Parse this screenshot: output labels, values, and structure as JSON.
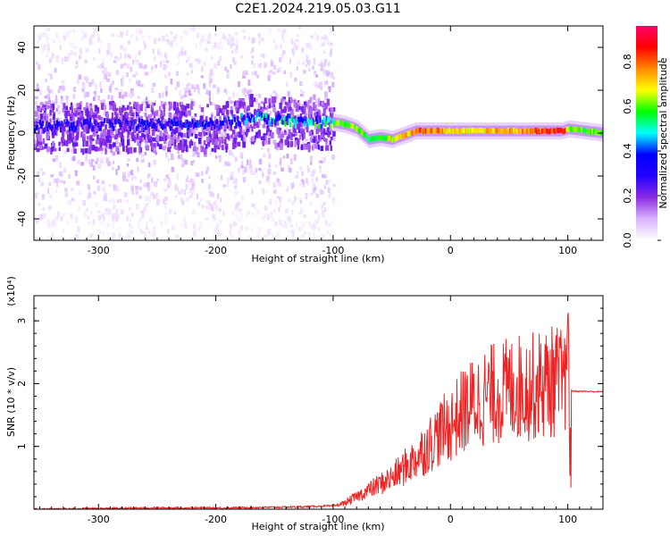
{
  "title": "C2E1.2024.219.05.03.G11",
  "colorbar": {
    "label": "Normalized spectral amplitude",
    "ticks": [
      "0.0",
      "0.2",
      "0.4",
      "0.6",
      "0.8"
    ],
    "tick_values": [
      0.0,
      0.2,
      0.4,
      0.6,
      0.8
    ],
    "range": [
      0.0,
      0.96
    ],
    "colormap": [
      "#ffffff",
      "#d9b3ff",
      "#8a2be2",
      "#2200ff",
      "#0000ff",
      "#00ffff",
      "#00ff00",
      "#ffff00",
      "#ff8800",
      "#ff0000",
      "#ff0066"
    ]
  },
  "chart_data": [
    {
      "type": "heatmap",
      "xlabel": "Height of straight line (km)",
      "ylabel": "Frequency (Hz)",
      "xlim": [
        -355,
        130
      ],
      "ylim": [
        -50,
        50
      ],
      "x_ticks": [
        "-300",
        "-200",
        "-100",
        "0",
        "100"
      ],
      "x_tick_values": [
        -300,
        -200,
        -100,
        0,
        100
      ],
      "y_ticks": [
        "-40",
        "-20",
        "0",
        "20",
        "40"
      ],
      "y_tick_values": [
        -40,
        -20,
        0,
        20,
        40
      ],
      "ridge": {
        "x": [
          -355,
          -300,
          -250,
          -200,
          -180,
          -170,
          -160,
          -150,
          -140,
          -130,
          -120,
          -110,
          -100,
          -90,
          -80,
          -70,
          -60,
          -50,
          -40,
          -30,
          -20,
          -10,
          0,
          20,
          40,
          60,
          80,
          95,
          100,
          130
        ],
        "frequency": [
          3,
          4,
          4,
          4,
          6,
          8,
          7,
          6,
          6,
          5,
          5,
          5,
          5,
          4,
          2,
          -3,
          -2,
          -3,
          -1,
          1,
          1,
          1,
          1,
          1,
          1,
          1,
          1,
          1,
          2,
          0
        ],
        "amplitude": [
          0.32,
          0.33,
          0.35,
          0.35,
          0.4,
          0.45,
          0.5,
          0.45,
          0.5,
          0.45,
          0.5,
          0.55,
          0.6,
          0.6,
          0.6,
          0.55,
          0.6,
          0.65,
          0.7,
          0.75,
          0.8,
          0.75,
          0.7,
          0.7,
          0.75,
          0.75,
          0.8,
          0.9,
          0.6,
          0.6
        ]
      }
    },
    {
      "type": "line",
      "xlabel": "Height of straight line (km)",
      "ylabel": "SNR (10 * v/v)",
      "scale_label": "(x10⁴)",
      "xlim": [
        -355,
        130
      ],
      "ylim": [
        0,
        3.4
      ],
      "x_ticks": [
        "-300",
        "-200",
        "-100",
        "0",
        "100"
      ],
      "x_tick_values": [
        -300,
        -200,
        -100,
        0,
        100
      ],
      "y_ticks": [
        "1",
        "2",
        "3"
      ],
      "y_tick_values": [
        1,
        2,
        3
      ],
      "color": "#ee2222",
      "series": [
        {
          "x": [
            -355,
            -300,
            -250,
            -200,
            -150,
            -120,
            -110,
            -100,
            -90,
            -80,
            -70,
            -60,
            -50,
            -40,
            -30,
            -20,
            -10,
            0,
            10,
            20,
            30,
            40,
            50,
            60,
            70,
            80,
            90,
            95,
            100,
            105,
            130
          ],
          "y": [
            0.0,
            0.01,
            0.02,
            0.02,
            0.03,
            0.04,
            0.05,
            0.05,
            0.1,
            0.2,
            0.3,
            0.4,
            0.5,
            0.65,
            0.8,
            1.0,
            1.2,
            1.35,
            1.55,
            1.7,
            1.8,
            1.85,
            1.9,
            1.95,
            1.95,
            2.0,
            2.05,
            2.0,
            1.9,
            1.88,
            1.87
          ]
        }
      ]
    }
  ]
}
